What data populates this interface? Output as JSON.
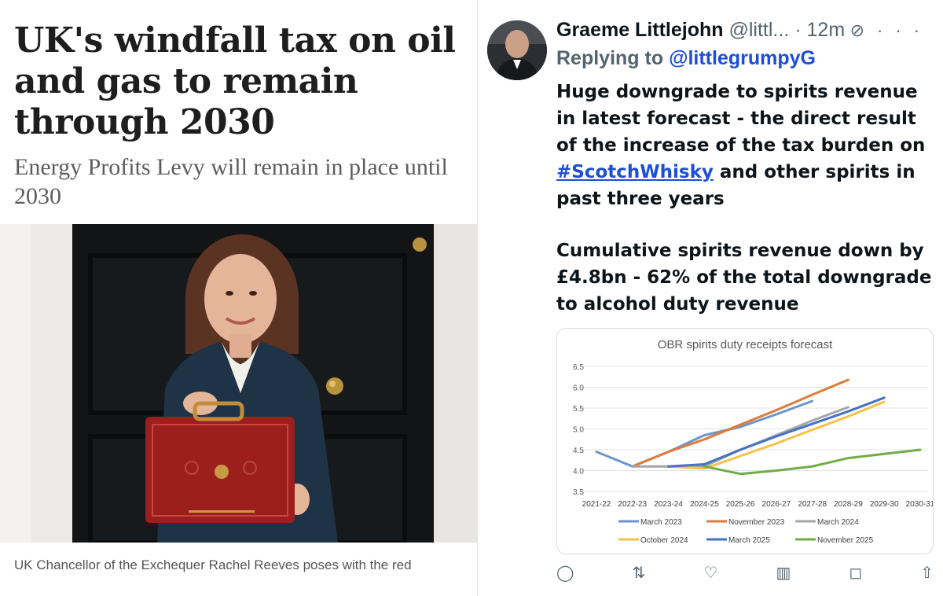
{
  "article": {
    "headline": "UK's windfall tax on oil and gas to remain through 2030",
    "standfirst": "Energy Profits Levy will remain in place until 2030",
    "caption": "UK Chancellor of the Exchequer Rachel Reeves poses with the red"
  },
  "tweet": {
    "author": "Graeme Littlejohn",
    "handle": "@littl...",
    "time": "· 12m",
    "reply_prefix": "Replying to",
    "reply_to": "@littlegrumpyG",
    "body_before": "Huge downgrade to spirits revenue in latest forecast - the direct result of the increase of the tax burden on",
    "hashtag": "#ScotchWhisky",
    "body_after": "and other spirits in past three years",
    "body2": "Cumulative spirits revenue down by £4.8bn - 62% of the total downgrade to alcohol duty revenue",
    "icons": [
      "grok-icon",
      "more-icon"
    ],
    "actions": [
      "reply-icon",
      "retweet-icon",
      "like-icon",
      "views-icon",
      "bookmark-icon",
      "share-icon"
    ]
  },
  "chart_data": {
    "type": "line",
    "title": "OBR spirits duty receipts forecast",
    "xlabel": "",
    "ylabel": "",
    "categories": [
      "2021-22",
      "2022-23",
      "2023-24",
      "2024-25",
      "2025-26",
      "2026-27",
      "2027-28",
      "2028-29",
      "2029-30",
      "2030-31"
    ],
    "yticks": [
      "6.5",
      "6.0",
      "5.5",
      "5.0",
      "4.5",
      "4.0",
      "3.5"
    ],
    "ylim": [
      3.5,
      6.5
    ],
    "grid": "horizontal",
    "legend": "bottom",
    "series": [
      {
        "name": "March 2023",
        "color": "#6a96cd",
        "values": [
          4.45,
          4.1,
          4.45,
          4.85,
          5.05,
          5.35,
          5.67,
          null,
          null,
          null
        ]
      },
      {
        "name": "November 2023",
        "color": "#e07b39",
        "values": [
          null,
          4.1,
          4.45,
          4.75,
          5.1,
          5.45,
          5.82,
          6.18,
          null,
          null
        ]
      },
      {
        "name": "March 2024",
        "color": "#a5a5a5",
        "values": [
          null,
          4.1,
          4.1,
          4.1,
          4.5,
          4.85,
          5.2,
          5.52,
          null,
          null
        ]
      },
      {
        "name": "October 2024",
        "color": "#f5c244",
        "values": [
          null,
          null,
          4.1,
          4.05,
          4.35,
          4.65,
          4.98,
          5.3,
          5.65,
          null
        ]
      },
      {
        "name": "March 2025",
        "color": "#4472c4",
        "values": [
          null,
          null,
          4.1,
          4.15,
          4.5,
          4.82,
          5.12,
          5.42,
          5.75,
          null
        ]
      },
      {
        "name": "November 2025",
        "color": "#70ad47",
        "values": [
          null,
          null,
          null,
          4.1,
          3.92,
          4.0,
          4.1,
          4.3,
          4.4,
          4.5
        ]
      }
    ]
  }
}
